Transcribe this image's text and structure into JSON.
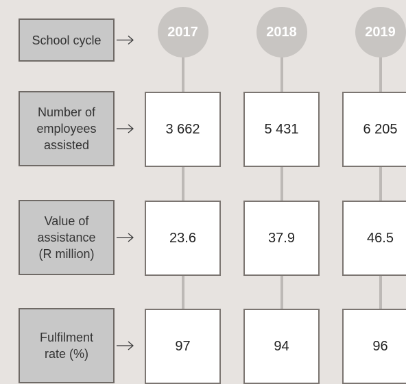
{
  "columns": [
    "2017",
    "2018",
    "2019"
  ],
  "rows": [
    {
      "label": "School cycle"
    },
    {
      "label": "Number of employees assisted",
      "values": [
        "3 662",
        "5 431",
        "6 205"
      ]
    },
    {
      "label": "Value of assistance (R million)",
      "values": [
        "23.6",
        "37.9",
        "46.5"
      ]
    },
    {
      "label": "Fulfilment rate (%)",
      "values": [
        "97",
        "94",
        "96"
      ]
    }
  ]
}
